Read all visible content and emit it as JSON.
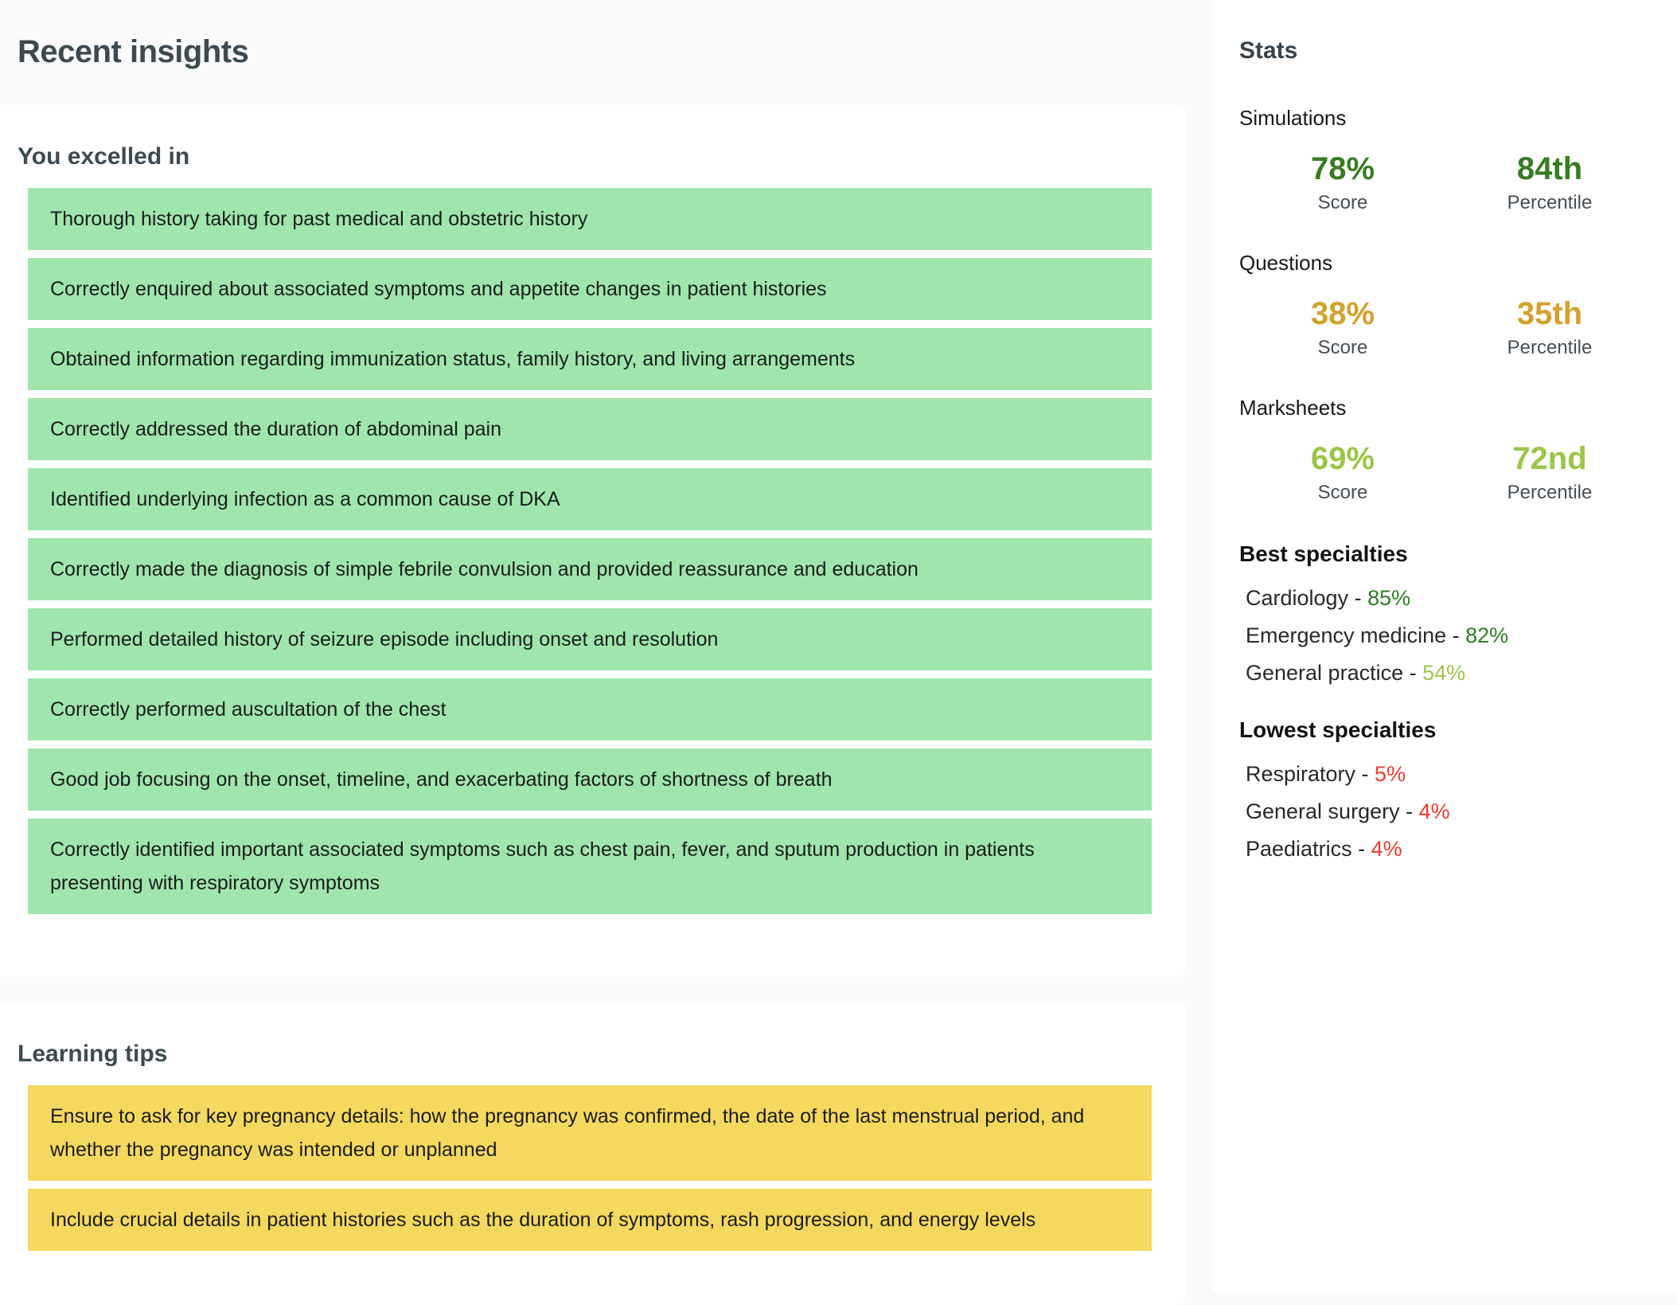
{
  "page": {
    "title": "Recent insights"
  },
  "sections": {
    "excelled": {
      "heading": "You excelled in",
      "highlight_color": "#a0e5ad",
      "items": [
        "Thorough history taking for past medical and obstetric history",
        "Correctly enquired about associated symptoms and appetite changes in patient histories",
        "Obtained information regarding immunization status, family history, and living arrangements",
        "Correctly addressed the duration of abdominal pain",
        "Identified underlying infection as a common cause of DKA",
        "Correctly made the diagnosis of simple febrile convulsion and provided reassurance and education",
        "Performed detailed history of seizure episode including onset and resolution",
        "Correctly performed auscultation of the chest",
        "Good job focusing on the onset, timeline, and exacerbating factors of shortness of breath",
        "Correctly identified important associated symptoms such as chest pain, fever, and sputum production in patients presenting with respiratory symptoms"
      ]
    },
    "tips": {
      "heading": "Learning tips",
      "highlight_color": "#f5d95e",
      "items": [
        "Ensure to ask for key pregnancy details: how the pregnancy was confirmed, the date of the last menstrual period, and whether the pregnancy was intended or unplanned",
        "Include crucial details in patient histories such as the duration of symptoms, rash progression, and energy levels"
      ]
    }
  },
  "stats": {
    "heading": "Stats",
    "specialty_separator": "-",
    "groups": [
      {
        "label": "Simulations",
        "score": "78%",
        "score_label": "Score",
        "percentile": "84th",
        "percentile_label": "Percentile",
        "color": "#377d22"
      },
      {
        "label": "Questions",
        "score": "38%",
        "score_label": "Score",
        "percentile": "35th",
        "percentile_label": "Percentile",
        "color": "#d4a22c"
      },
      {
        "label": "Marksheets",
        "score": "69%",
        "score_label": "Score",
        "percentile": "72nd",
        "percentile_label": "Percentile",
        "color": "#9bc548"
      }
    ],
    "best": {
      "heading": "Best specialties",
      "items": [
        {
          "name": "Cardiology",
          "value": "85%",
          "value_color": "#2e7d23"
        },
        {
          "name": "Emergency medicine",
          "value": "82%",
          "value_color": "#2e7d23"
        },
        {
          "name": "General practice",
          "value": "54%",
          "value_color": "#9bc548"
        }
      ]
    },
    "lowest": {
      "heading": "Lowest specialties",
      "items": [
        {
          "name": "Respiratory",
          "value": "5%",
          "value_color": "#ed3c2f"
        },
        {
          "name": "General surgery",
          "value": "4%",
          "value_color": "#ed3c2f"
        },
        {
          "name": "Paediatrics",
          "value": "4%",
          "value_color": "#ed3c2f"
        }
      ]
    }
  }
}
